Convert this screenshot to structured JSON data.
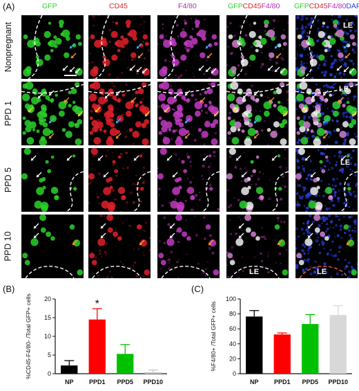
{
  "figure": {
    "panel_labels": [
      "(A)",
      "(B)",
      "(C)"
    ],
    "column_headers": [
      [
        {
          "text": "GFP",
          "color": "#2bd12b"
        }
      ],
      [
        {
          "text": "CD45",
          "color": "#e0202a"
        }
      ],
      [
        {
          "text": "F4/80",
          "color": "#b02bb0"
        }
      ],
      [
        {
          "text": "GFP",
          "color": "#2bd12b"
        },
        {
          "text": "CD45",
          "color": "#e0202a"
        },
        {
          "text": "F4/80",
          "color": "#b02bb0"
        }
      ],
      [
        {
          "text": "GFP",
          "color": "#2bd12b"
        },
        {
          "text": "CD45",
          "color": "#e0202a"
        },
        {
          "text": "F4/80",
          "color": "#b02bb0"
        },
        {
          "text": "DAPI",
          "color": "#2a3fd6"
        }
      ]
    ],
    "row_labels": [
      "Nonpregnant",
      "PPD 1",
      "PPD 5",
      "PPD 10"
    ],
    "tissue_label": "LE",
    "channel_colors": {
      "gfp": "#2bd12b",
      "cd45": "#e0202a",
      "f480": "#c23ac2",
      "dapi": "#2a3fd6"
    }
  },
  "chart_data": [
    {
      "type": "bar",
      "panel": "(B)",
      "categories": [
        "NP",
        "PPD1",
        "PPD5",
        "PPD10"
      ],
      "values": [
        2.2,
        14.5,
        5.3,
        0.4
      ],
      "errors": [
        1.3,
        2.9,
        2.5,
        0.6
      ],
      "colors": [
        "#000000",
        "#ff0000",
        "#00c000",
        "#c8c8c8"
      ],
      "ylabel": "%CD45-F4/80- /Total GFP+ cells",
      "ylim": [
        0,
        20
      ],
      "yticks": [
        0,
        5,
        10,
        15,
        20
      ],
      "annotations": [
        {
          "category": "PPD1",
          "text": "*"
        }
      ]
    },
    {
      "type": "bar",
      "panel": "(C)",
      "categories": [
        "NP",
        "PPD1",
        "PPD5",
        "PPD10"
      ],
      "values": [
        76.5,
        52.5,
        66.5,
        78.5
      ],
      "errors": [
        8.0,
        2.0,
        12.5,
        12.5
      ],
      "colors": [
        "#000000",
        "#ff0000",
        "#00c000",
        "#d8d8d8"
      ],
      "ylabel": "%F4/80+ /Total GFP+ cells",
      "ylim": [
        0,
        100
      ],
      "yticks": [
        0,
        20,
        40,
        60,
        80,
        100
      ]
    }
  ]
}
